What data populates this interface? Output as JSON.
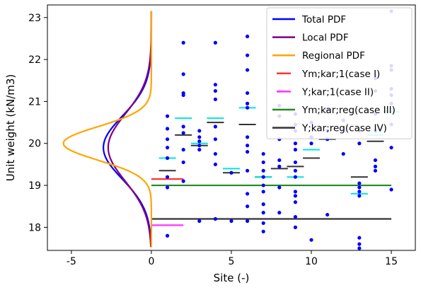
{
  "chart_data": {
    "type": "scatter",
    "xlabel": "Site (-)",
    "ylabel": "Unit weight (kN/m3)",
    "xlim": [
      -6.5,
      16.5
    ],
    "ylim": [
      17.45,
      23.3
    ],
    "xticks": [
      -5,
      0,
      5,
      10,
      15
    ],
    "yticks": [
      18,
      19,
      20,
      21,
      22,
      23
    ],
    "grid": false,
    "legend_position": "top-right",
    "legend": [
      {
        "label": "Total PDF",
        "color": "#0000ff",
        "kind": "line"
      },
      {
        "label": "Local PDF",
        "color": "#800080",
        "kind": "line"
      },
      {
        "label": "Regional PDF",
        "color": "#ffa500",
        "kind": "line"
      },
      {
        "label": "Ym;kar;1(case I)",
        "color": "#ff3333",
        "kind": "segment"
      },
      {
        "label": "Y;kar;1(case II)",
        "color": "#ff33ff",
        "kind": "segment"
      },
      {
        "label": "Ym;kar;reg(case III)",
        "color": "#228b22",
        "kind": "line"
      },
      {
        "label": "Y;kar;reg(case IV)",
        "color": "#333333",
        "kind": "line"
      }
    ],
    "pdfs": [
      {
        "name": "Total PDF",
        "color": "#0000ff",
        "peak": -3.0,
        "mean": 19.9,
        "std": 0.75
      },
      {
        "name": "Local PDF",
        "color": "#800080",
        "peak": -2.7,
        "mean": 19.9,
        "std": 0.8
      },
      {
        "name": "Regional PDF",
        "color": "#ffa500",
        "peak": -5.5,
        "mean": 20.0,
        "std": 0.4
      }
    ],
    "points": {
      "color": "#0000ff",
      "data": [
        [
          1,
          20.65
        ],
        [
          1,
          20.35
        ],
        [
          1,
          20.1
        ],
        [
          1,
          19.9
        ],
        [
          1,
          19.65
        ],
        [
          1,
          19.2
        ],
        [
          1,
          18.95
        ],
        [
          1,
          17.8
        ],
        [
          2,
          22.4
        ],
        [
          2,
          21.65
        ],
        [
          2,
          21.2
        ],
        [
          2,
          21.15
        ],
        [
          2,
          20.4
        ],
        [
          2,
          20.25
        ],
        [
          2,
          19.85
        ],
        [
          2,
          19.55
        ],
        [
          2,
          19.1
        ],
        [
          3,
          20.3
        ],
        [
          3,
          20.15
        ],
        [
          3,
          20.05
        ],
        [
          3,
          19.95
        ],
        [
          3,
          19.85
        ],
        [
          3,
          18.15
        ],
        [
          4,
          22.4
        ],
        [
          4,
          21.4
        ],
        [
          4,
          21.25
        ],
        [
          4,
          21.05
        ],
        [
          4,
          20.4
        ],
        [
          4,
          20.1
        ],
        [
          4,
          19.75
        ],
        [
          4,
          19.5
        ],
        [
          4,
          18.2
        ],
        [
          5,
          19.3
        ],
        [
          5,
          18.15
        ],
        [
          6,
          22.55
        ],
        [
          6,
          22.1
        ],
        [
          6,
          21.75
        ],
        [
          6,
          21.2
        ],
        [
          6,
          20.95
        ],
        [
          6,
          20.85
        ],
        [
          6,
          20.15
        ],
        [
          6,
          19.95
        ],
        [
          6,
          19.8
        ],
        [
          6,
          19.35
        ],
        [
          6,
          18.8
        ],
        [
          6,
          18.5
        ],
        [
          6,
          18.15
        ],
        [
          7,
          19.75
        ],
        [
          7,
          19.55
        ],
        [
          7,
          19.35
        ],
        [
          7,
          19.2
        ],
        [
          7,
          19.0
        ],
        [
          7,
          18.85
        ],
        [
          7,
          18.55
        ],
        [
          7,
          18.35
        ],
        [
          7,
          18.1
        ],
        [
          7,
          17.9
        ],
        [
          8,
          21.25
        ],
        [
          8,
          20.9
        ],
        [
          8,
          20.65
        ],
        [
          8,
          20.1
        ],
        [
          8,
          19.6
        ],
        [
          8,
          19.45
        ],
        [
          8,
          18.95
        ],
        [
          8,
          18.35
        ],
        [
          9,
          20.7
        ],
        [
          9,
          20.45
        ],
        [
          9,
          20.3
        ],
        [
          9,
          20.0
        ],
        [
          9,
          19.85
        ],
        [
          9,
          19.55
        ],
        [
          9,
          19.35
        ],
        [
          9,
          19.2
        ],
        [
          9,
          18.85
        ],
        [
          9,
          18.75
        ],
        [
          9,
          18.6
        ],
        [
          9,
          18.25
        ],
        [
          9,
          18.0
        ],
        [
          10,
          20.5
        ],
        [
          10,
          20.15
        ],
        [
          10,
          20.0
        ],
        [
          10,
          17.7
        ],
        [
          11,
          20.8
        ],
        [
          11,
          20.3
        ],
        [
          11,
          20.1
        ],
        [
          11,
          18.3
        ],
        [
          12,
          20.55
        ],
        [
          12,
          20.35
        ],
        [
          12,
          19.75
        ],
        [
          13,
          20.3
        ],
        [
          13,
          20.0
        ],
        [
          13,
          19.05
        ],
        [
          13,
          18.95
        ],
        [
          13,
          18.85
        ],
        [
          13,
          18.75
        ],
        [
          13,
          17.75
        ],
        [
          13,
          17.6
        ],
        [
          13,
          17.5
        ],
        [
          14,
          21.55
        ],
        [
          14,
          21.25
        ],
        [
          14,
          20.7
        ],
        [
          14,
          20.3
        ],
        [
          14,
          19.6
        ],
        [
          14,
          19.45
        ],
        [
          14,
          19.35
        ],
        [
          15,
          23.15
        ],
        [
          15,
          21.85
        ],
        [
          15,
          21.75
        ],
        [
          15,
          21.3
        ],
        [
          15,
          21.15
        ],
        [
          15,
          20.95
        ],
        [
          15,
          20.45
        ],
        [
          15,
          19.9
        ],
        [
          15,
          18.9
        ]
      ]
    },
    "site_means": {
      "color": "#333333",
      "values": [
        [
          1,
          19.35
        ],
        [
          2,
          20.2
        ],
        [
          3,
          19.95
        ],
        [
          4,
          20.5
        ],
        [
          5,
          19.3
        ],
        [
          6,
          20.45
        ],
        [
          7,
          19.2
        ],
        [
          8,
          19.4
        ],
        [
          9,
          19.45
        ],
        [
          10,
          19.65
        ],
        [
          11,
          20.1
        ],
        [
          13,
          19.2
        ],
        [
          14,
          20.05
        ]
      ]
    },
    "site_kar": {
      "color": "#00e5e5",
      "values": [
        [
          1,
          19.65
        ],
        [
          2,
          20.6
        ],
        [
          3,
          20.0
        ],
        [
          4,
          20.6
        ],
        [
          5,
          19.4
        ],
        [
          6,
          20.85
        ],
        [
          7,
          19.2
        ],
        [
          9,
          19.2
        ],
        [
          10,
          19.85
        ],
        [
          13,
          18.8
        ],
        [
          14,
          20.2
        ],
        [
          15,
          20.75
        ]
      ]
    },
    "segments": [
      {
        "name": "Ym;kar;1(case I)",
        "color": "#ff3333",
        "x": [
          0,
          2
        ],
        "y": 19.15
      },
      {
        "name": "Y;kar;1(case II)",
        "color": "#ff33ff",
        "x": [
          0,
          2
        ],
        "y": 18.05
      },
      {
        "name": "Ym;kar;reg(case III)",
        "color": "#228b22",
        "x": [
          0,
          15
        ],
        "y": 19.0
      },
      {
        "name": "Y;kar;reg(case IV)",
        "color": "#333333",
        "x": [
          0,
          15
        ],
        "y": 18.2
      }
    ]
  }
}
